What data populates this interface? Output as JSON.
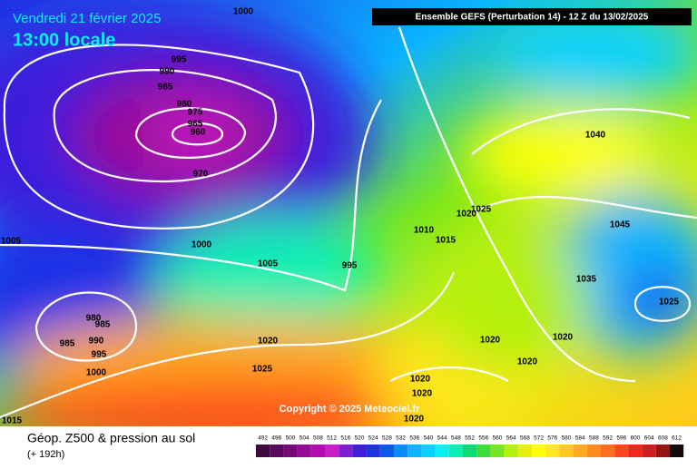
{
  "header": {
    "date": "Vendredi 21 février 2025",
    "time": "13:00 locale",
    "model": "Ensemble GEFS  (Perturbation 14)  -  12 Z du 13/02/2025"
  },
  "isobar_labels": [
    "1000",
    "995",
    "990",
    "985",
    "980",
    "975",
    "965",
    "960",
    "970",
    "1000",
    "1005",
    "1005",
    "995",
    "1010",
    "1015",
    "1020",
    "1025",
    "1040",
    "1045",
    "1035",
    "1025",
    "980",
    "985",
    "985",
    "990",
    "995",
    "1000",
    "1020",
    "1025",
    "1020",
    "1020",
    "1020",
    "1020",
    "1020",
    "1020",
    "1015"
  ],
  "copyright": "Copyright © 2025 Meteociel.fr",
  "legend": {
    "title": "Géop. Z500 & pression au sol",
    "lead": "(+ 192h)",
    "scale": [
      492,
      496,
      500,
      504,
      508,
      512,
      516,
      520,
      524,
      528,
      532,
      536,
      540,
      544,
      548,
      552,
      556,
      560,
      564,
      568,
      572,
      576,
      580,
      584,
      588,
      592,
      596,
      600,
      604,
      608,
      612
    ]
  }
}
